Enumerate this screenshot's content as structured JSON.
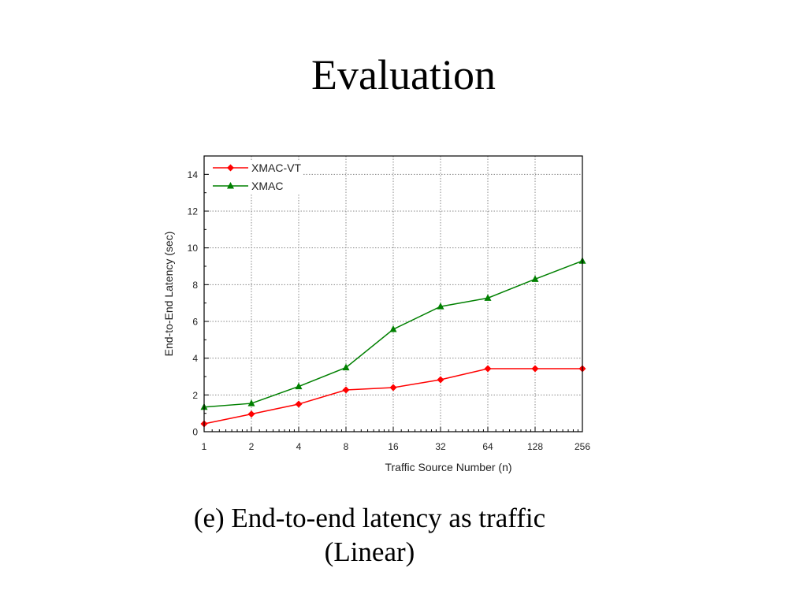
{
  "slide": {
    "title": "Evaluation",
    "caption_line1": "(e) End-to-end latency as traffic",
    "caption_line2": "(Linear)"
  },
  "chart_data": {
    "type": "line",
    "title": "",
    "xlabel": "Traffic Source Number (n)",
    "ylabel": "End-to-End Latency (sec)",
    "categories": [
      "1",
      "2",
      "4",
      "8",
      "16",
      "32",
      "64",
      "128",
      "256"
    ],
    "ylim": [
      0,
      15
    ],
    "yticks": [
      0,
      2,
      4,
      6,
      8,
      10,
      12,
      14
    ],
    "grid": true,
    "legend": "top-left",
    "series": [
      {
        "name": "XMAC-VT",
        "color": "#ff0000",
        "marker": "diamond",
        "values": [
          0.43,
          0.96,
          1.5,
          2.27,
          2.4,
          2.83,
          3.43,
          3.43,
          3.43
        ]
      },
      {
        "name": "XMAC",
        "color": "#008000",
        "marker": "triangle",
        "values": [
          1.34,
          1.54,
          2.46,
          3.49,
          5.57,
          6.81,
          7.27,
          8.3,
          9.29
        ]
      }
    ]
  }
}
